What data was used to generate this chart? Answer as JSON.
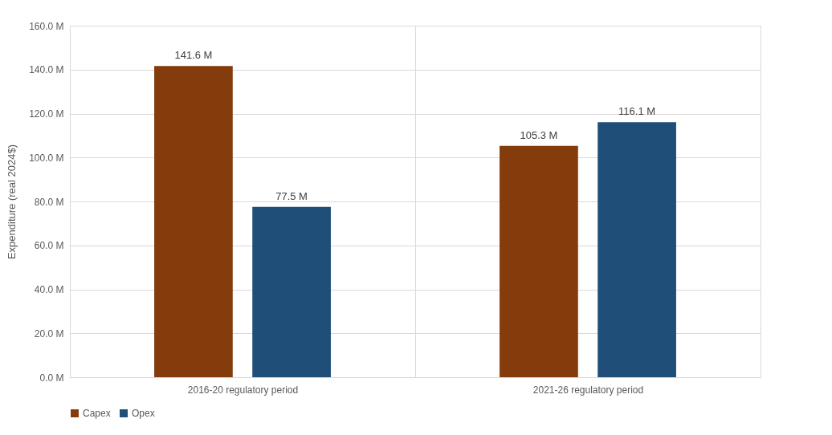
{
  "chart_data": {
    "type": "bar",
    "ylabel": "Expenditure (real 2024$)",
    "categories": [
      "2016-20 regulatory period",
      "2021-26 regulatory period"
    ],
    "series": [
      {
        "name": "Capex",
        "color": "#843c0c",
        "values": [
          141.6,
          105.3
        ],
        "value_labels": [
          "141.6 M",
          "105.3 M"
        ]
      },
      {
        "name": "Opex",
        "color": "#1f4e79",
        "values": [
          77.5,
          116.1
        ],
        "value_labels": [
          "77.5 M",
          "116.1 M"
        ]
      }
    ],
    "ylim": [
      0,
      160
    ],
    "yticks": [
      {
        "value": 0,
        "label": "0.0 M"
      },
      {
        "value": 20,
        "label": "20.0 M"
      },
      {
        "value": 40,
        "label": "40.0 M"
      },
      {
        "value": 60,
        "label": "60.0 M"
      },
      {
        "value": 80,
        "label": "80.0 M"
      },
      {
        "value": 100,
        "label": "100.0 M"
      },
      {
        "value": 120,
        "label": "120.0 M"
      },
      {
        "value": 140,
        "label": "140.0 M"
      },
      {
        "value": 160,
        "label": "160.0 M"
      }
    ],
    "grid": true,
    "legend": "bottom"
  }
}
